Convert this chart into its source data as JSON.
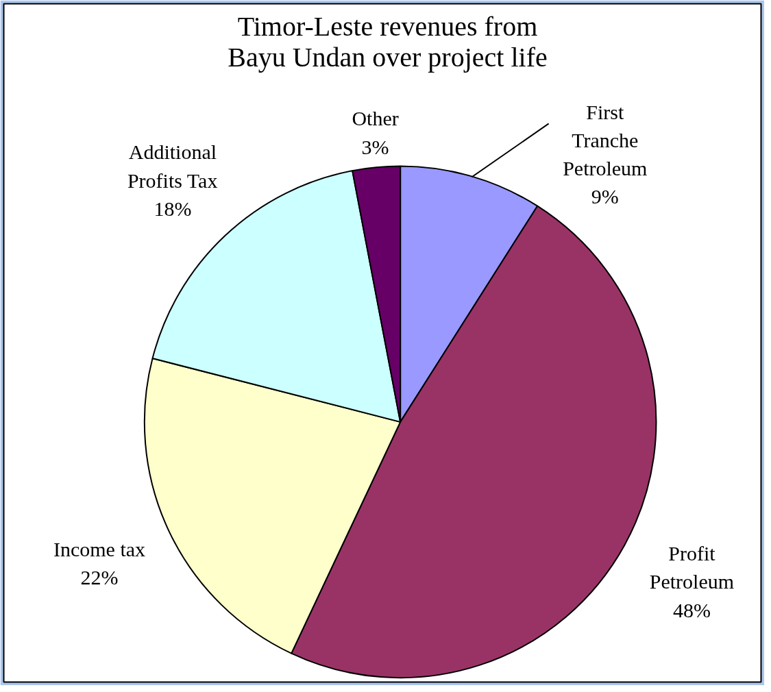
{
  "chart_data": {
    "type": "pie",
    "title": "Timor-Leste revenues from Bayu Undan over project life",
    "categories": [
      "First Tranche Petroleum",
      "Profit Petroleum",
      "Income tax",
      "Additional Profits Tax",
      "Other"
    ],
    "values": [
      9,
      48,
      22,
      18,
      3
    ],
    "colors": [
      "#9999ff",
      "#993366",
      "#ffffcc",
      "#ccffff",
      "#660066"
    ],
    "value_labels": [
      "9%",
      "48%",
      "22%",
      "18%",
      "3%"
    ]
  }
}
